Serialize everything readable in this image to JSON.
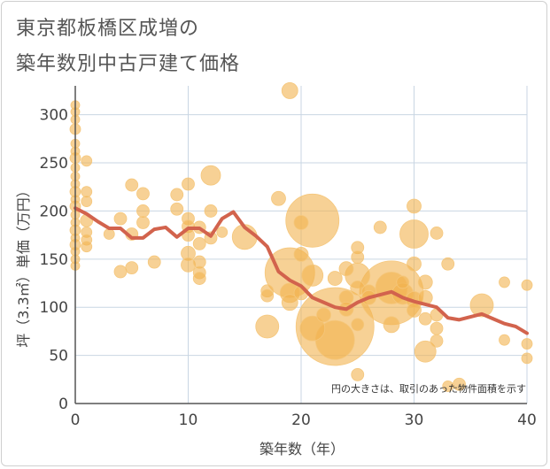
{
  "title_line1": "東京都板橋区成増の",
  "title_line2": "築年数別中古戸建て価格",
  "chart_data": {
    "type": "scatter",
    "xlabel": "築年数（年）",
    "ylabel": "坪（3.3㎡）単価（万円）",
    "xlim": [
      0,
      40
    ],
    "ylim": [
      0,
      330
    ],
    "xticks": [
      0,
      10,
      20,
      30,
      40
    ],
    "yticks": [
      0,
      50,
      100,
      150,
      200,
      250,
      300
    ],
    "grid": true,
    "note": "円の大きさは、取引のあった物件面積を示す",
    "colors": {
      "bubble": "#f2b24f",
      "line": "#d2634d",
      "grid": "#c9d6e3",
      "axis": "#555555"
    },
    "bubbles": [
      {
        "x": 0,
        "y": 310,
        "s": 5
      },
      {
        "x": 0,
        "y": 303,
        "s": 5
      },
      {
        "x": 0,
        "y": 295,
        "s": 5
      },
      {
        "x": 0,
        "y": 285,
        "s": 6
      },
      {
        "x": 0,
        "y": 270,
        "s": 5
      },
      {
        "x": 0,
        "y": 262,
        "s": 5
      },
      {
        "x": 0,
        "y": 255,
        "s": 6
      },
      {
        "x": 0,
        "y": 245,
        "s": 5
      },
      {
        "x": 0,
        "y": 236,
        "s": 5
      },
      {
        "x": 0,
        "y": 228,
        "s": 5
      },
      {
        "x": 0,
        "y": 220,
        "s": 6
      },
      {
        "x": 0,
        "y": 212,
        "s": 5
      },
      {
        "x": 0,
        "y": 205,
        "s": 6
      },
      {
        "x": 0,
        "y": 196,
        "s": 5
      },
      {
        "x": 0,
        "y": 188,
        "s": 5
      },
      {
        "x": 0,
        "y": 180,
        "s": 6
      },
      {
        "x": 0,
        "y": 172,
        "s": 5
      },
      {
        "x": 0,
        "y": 165,
        "s": 6
      },
      {
        "x": 0,
        "y": 158,
        "s": 5
      },
      {
        "x": 0,
        "y": 150,
        "s": 5
      },
      {
        "x": 0,
        "y": 143,
        "s": 5
      },
      {
        "x": 1,
        "y": 252,
        "s": 6
      },
      {
        "x": 1,
        "y": 220,
        "s": 6
      },
      {
        "x": 1,
        "y": 210,
        "s": 6
      },
      {
        "x": 1,
        "y": 190,
        "s": 7
      },
      {
        "x": 1,
        "y": 178,
        "s": 6
      },
      {
        "x": 1,
        "y": 170,
        "s": 6
      },
      {
        "x": 1,
        "y": 163,
        "s": 6
      },
      {
        "x": 3,
        "y": 176,
        "s": 6
      },
      {
        "x": 4,
        "y": 192,
        "s": 7
      },
      {
        "x": 4,
        "y": 137,
        "s": 7
      },
      {
        "x": 5,
        "y": 227,
        "s": 7
      },
      {
        "x": 5,
        "y": 176,
        "s": 7
      },
      {
        "x": 5,
        "y": 141,
        "s": 7
      },
      {
        "x": 6,
        "y": 218,
        "s": 7
      },
      {
        "x": 6,
        "y": 200,
        "s": 7
      },
      {
        "x": 6,
        "y": 188,
        "s": 7
      },
      {
        "x": 7,
        "y": 147,
        "s": 7
      },
      {
        "x": 9,
        "y": 217,
        "s": 7
      },
      {
        "x": 9,
        "y": 202,
        "s": 7
      },
      {
        "x": 10,
        "y": 228,
        "s": 7
      },
      {
        "x": 10,
        "y": 192,
        "s": 7
      },
      {
        "x": 10,
        "y": 184,
        "s": 7
      },
      {
        "x": 10,
        "y": 175,
        "s": 7
      },
      {
        "x": 10,
        "y": 156,
        "s": 8
      },
      {
        "x": 10,
        "y": 144,
        "s": 8
      },
      {
        "x": 11,
        "y": 183,
        "s": 7
      },
      {
        "x": 11,
        "y": 166,
        "s": 7
      },
      {
        "x": 11,
        "y": 147,
        "s": 7
      },
      {
        "x": 11,
        "y": 136,
        "s": 7
      },
      {
        "x": 11,
        "y": 130,
        "s": 7
      },
      {
        "x": 12,
        "y": 237,
        "s": 11
      },
      {
        "x": 12,
        "y": 200,
        "s": 7
      },
      {
        "x": 12,
        "y": 172,
        "s": 7
      },
      {
        "x": 13,
        "y": 178,
        "s": 6
      },
      {
        "x": 15,
        "y": 173,
        "s": 14
      },
      {
        "x": 17,
        "y": 117,
        "s": 7
      },
      {
        "x": 17,
        "y": 112,
        "s": 7
      },
      {
        "x": 17,
        "y": 80,
        "s": 13
      },
      {
        "x": 18,
        "y": 213,
        "s": 8
      },
      {
        "x": 19,
        "y": 325,
        "s": 9
      },
      {
        "x": 19,
        "y": 136,
        "s": 28
      },
      {
        "x": 19,
        "y": 115,
        "s": 11
      },
      {
        "x": 19,
        "y": 105,
        "s": 9
      },
      {
        "x": 20,
        "y": 188,
        "s": 8
      },
      {
        "x": 20,
        "y": 155,
        "s": 8
      },
      {
        "x": 20,
        "y": 115,
        "s": 8
      },
      {
        "x": 21,
        "y": 190,
        "s": 30
      },
      {
        "x": 21,
        "y": 133,
        "s": 12
      },
      {
        "x": 21,
        "y": 78,
        "s": 14
      },
      {
        "x": 22,
        "y": 92,
        "s": 8
      },
      {
        "x": 23,
        "y": 80,
        "s": 44
      },
      {
        "x": 23,
        "y": 66,
        "s": 22
      },
      {
        "x": 23,
        "y": 130,
        "s": 8
      },
      {
        "x": 24,
        "y": 140,
        "s": 8
      },
      {
        "x": 24,
        "y": 110,
        "s": 8
      },
      {
        "x": 24,
        "y": 98,
        "s": 8
      },
      {
        "x": 25,
        "y": 162,
        "s": 7
      },
      {
        "x": 25,
        "y": 152,
        "s": 7
      },
      {
        "x": 25,
        "y": 133,
        "s": 14
      },
      {
        "x": 25,
        "y": 120,
        "s": 8
      },
      {
        "x": 25,
        "y": 82,
        "s": 7
      },
      {
        "x": 25,
        "y": 30,
        "s": 7
      },
      {
        "x": 26,
        "y": 116,
        "s": 8
      },
      {
        "x": 26,
        "y": 110,
        "s": 8
      },
      {
        "x": 27,
        "y": 183,
        "s": 7
      },
      {
        "x": 28,
        "y": 115,
        "s": 36
      },
      {
        "x": 28,
        "y": 120,
        "s": 18
      },
      {
        "x": 28,
        "y": 82,
        "s": 9
      },
      {
        "x": 29,
        "y": 114,
        "s": 12
      },
      {
        "x": 29,
        "y": 126,
        "s": 7
      },
      {
        "x": 30,
        "y": 205,
        "s": 8
      },
      {
        "x": 30,
        "y": 176,
        "s": 16
      },
      {
        "x": 30,
        "y": 145,
        "s": 8
      },
      {
        "x": 30,
        "y": 108,
        "s": 9
      },
      {
        "x": 30,
        "y": 97,
        "s": 8
      },
      {
        "x": 31,
        "y": 126,
        "s": 8
      },
      {
        "x": 31,
        "y": 110,
        "s": 8
      },
      {
        "x": 31,
        "y": 88,
        "s": 7
      },
      {
        "x": 31,
        "y": 54,
        "s": 12
      },
      {
        "x": 32,
        "y": 177,
        "s": 7
      },
      {
        "x": 32,
        "y": 92,
        "s": 7
      },
      {
        "x": 32,
        "y": 78,
        "s": 7
      },
      {
        "x": 32,
        "y": 65,
        "s": 7
      },
      {
        "x": 33,
        "y": 145,
        "s": 7
      },
      {
        "x": 33,
        "y": 18,
        "s": 6
      },
      {
        "x": 34,
        "y": 20,
        "s": 7
      },
      {
        "x": 36,
        "y": 102,
        "s": 13
      },
      {
        "x": 38,
        "y": 126,
        "s": 6
      },
      {
        "x": 38,
        "y": 66,
        "s": 6
      },
      {
        "x": 40,
        "y": 123,
        "s": 6
      },
      {
        "x": 40,
        "y": 62,
        "s": 6
      },
      {
        "x": 40,
        "y": 47,
        "s": 6
      }
    ],
    "trend": {
      "x": [
        0,
        1,
        2,
        3,
        4,
        5,
        6,
        7,
        8,
        9,
        10,
        11,
        12,
        13,
        14,
        15,
        16,
        17,
        18,
        19,
        20,
        21,
        22,
        23,
        24,
        25,
        26,
        27,
        28,
        29,
        30,
        31,
        32,
        33,
        34,
        35,
        36,
        37,
        38,
        39,
        40
      ],
      "y": [
        203,
        197,
        189,
        182,
        182,
        172,
        172,
        181,
        183,
        173,
        182,
        182,
        174,
        192,
        199,
        183,
        174,
        163,
        137,
        128,
        122,
        110,
        105,
        100,
        98,
        105,
        110,
        113,
        116,
        110,
        106,
        103,
        100,
        89,
        87,
        90,
        93,
        88,
        83,
        80,
        73
      ]
    }
  }
}
